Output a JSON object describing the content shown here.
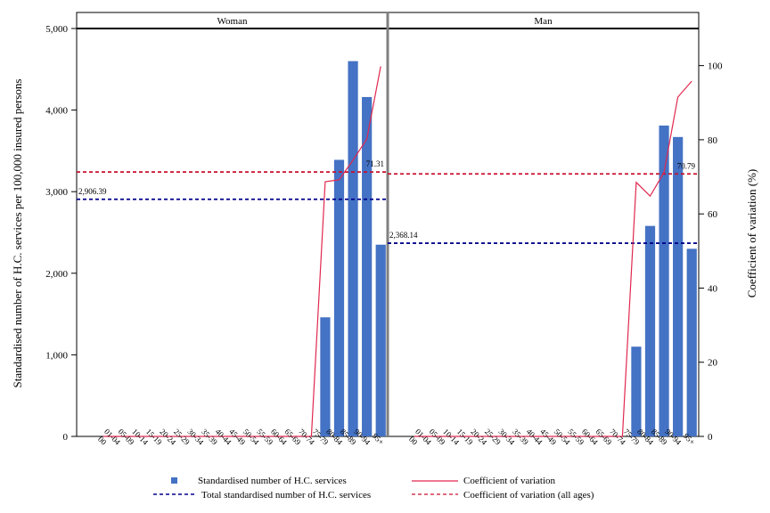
{
  "chart_data": {
    "type": "bar",
    "ylabel": "Standardised number of H.C. services per 100,000 insured persons",
    "y2label": "Coefficient of variation (%)",
    "ylim": [
      0,
      5000
    ],
    "y2lim": [
      0,
      110
    ],
    "yticks": [
      "0",
      "1,000",
      "2,000",
      "3,000",
      "4,000",
      "5,000"
    ],
    "y2ticks": [
      "0",
      "20",
      "40",
      "60",
      "80",
      "100"
    ],
    "categories": [
      "00",
      "01-04",
      "05-09",
      "10-14",
      "15-19",
      "20-24",
      "25-29",
      "30-34",
      "35-39",
      "40-44",
      "45-49",
      "50-54",
      "55-59",
      "60-64",
      "65-69",
      "70-74",
      "75-79",
      "80-84",
      "85-89",
      "90-94",
      "95+"
    ],
    "legend": {
      "bars": "Standardised number of H.C. services",
      "total": "Total standardised number of H.C. services",
      "cv": "Coefficient of variation",
      "cv_all": "Coefficient of variation (all ages)"
    },
    "colors": {
      "bar": "#4472C4",
      "total": "#00008B",
      "cv": "#E0284F",
      "cv_all": "#C8102E"
    },
    "panels": [
      {
        "title": "Woman",
        "values": [
          0,
          0,
          0,
          0,
          0,
          0,
          0,
          0,
          0,
          0,
          0,
          0,
          0,
          0,
          0,
          0,
          1460,
          3390,
          4600,
          4160,
          2350
        ],
        "cv": [
          0,
          0,
          0,
          0,
          0,
          0,
          0,
          0,
          0,
          0,
          0,
          0,
          0,
          0,
          0,
          0,
          68.7,
          69.2,
          74.5,
          80.2,
          99.8
        ],
        "total": 2906.39,
        "total_label": "2,906.39",
        "cv_all": 71.31,
        "cv_all_label": "71.31"
      },
      {
        "title": "Man",
        "values": [
          0,
          0,
          0,
          0,
          0,
          0,
          0,
          0,
          0,
          0,
          0,
          0,
          0,
          0,
          0,
          0,
          1100,
          2580,
          3810,
          3670,
          2300
        ],
        "cv": [
          0,
          0,
          0,
          0,
          0,
          0,
          0,
          0,
          0,
          0,
          0,
          0,
          0,
          0,
          0,
          0,
          68.5,
          64.8,
          71.2,
          91.5,
          95.8
        ],
        "total": 2368.14,
        "total_label": "2,368.14",
        "cv_all": 70.79,
        "cv_all_label": "70.79"
      }
    ]
  }
}
